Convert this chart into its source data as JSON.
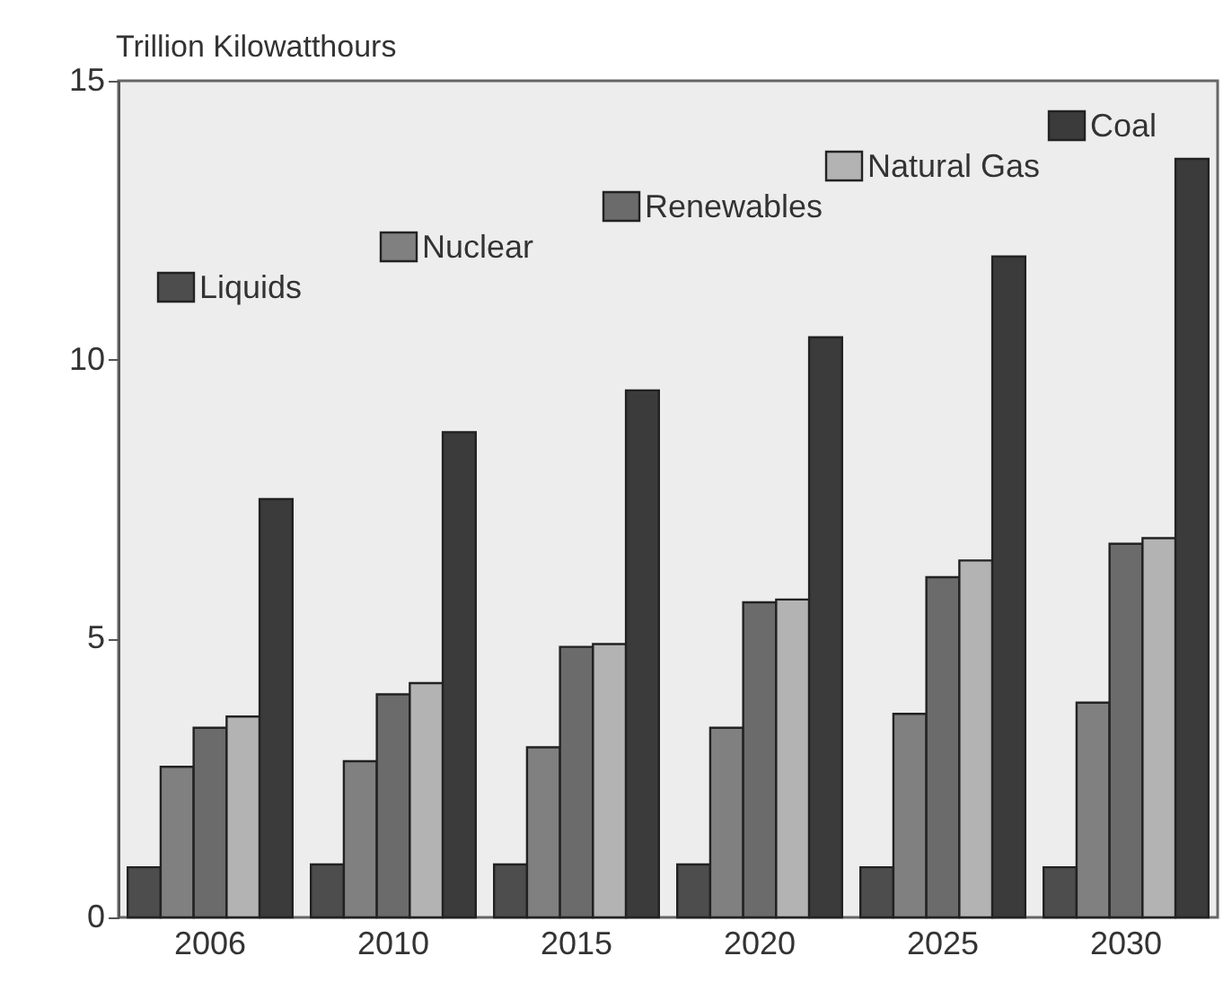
{
  "chart_data": {
    "type": "bar",
    "ylabel": "Trillion Kilowatthours",
    "categories": [
      "2006",
      "2010",
      "2015",
      "2020",
      "2025",
      "2030"
    ],
    "series": [
      {
        "name": "Liquids",
        "color": "#4d4d4d",
        "values": [
          0.9,
          0.95,
          0.95,
          0.95,
          0.9,
          0.9
        ]
      },
      {
        "name": "Nuclear",
        "color": "#808080",
        "values": [
          2.7,
          2.8,
          3.05,
          3.4,
          3.65,
          3.85
        ]
      },
      {
        "name": "Renewables",
        "color": "#6b6b6b",
        "values": [
          3.4,
          4.0,
          4.85,
          5.65,
          6.1,
          6.7
        ]
      },
      {
        "name": "Natural Gas",
        "color": "#b3b3b3",
        "values": [
          3.6,
          4.2,
          4.9,
          5.7,
          6.4,
          6.8
        ]
      },
      {
        "name": "Coal",
        "color": "#3b3b3b",
        "values": [
          7.5,
          8.7,
          9.45,
          10.4,
          11.85,
          13.6
        ]
      }
    ],
    "ylim": [
      0,
      15
    ],
    "yticks": [
      0,
      5,
      10,
      15
    ],
    "grid": false,
    "legend": "top"
  }
}
